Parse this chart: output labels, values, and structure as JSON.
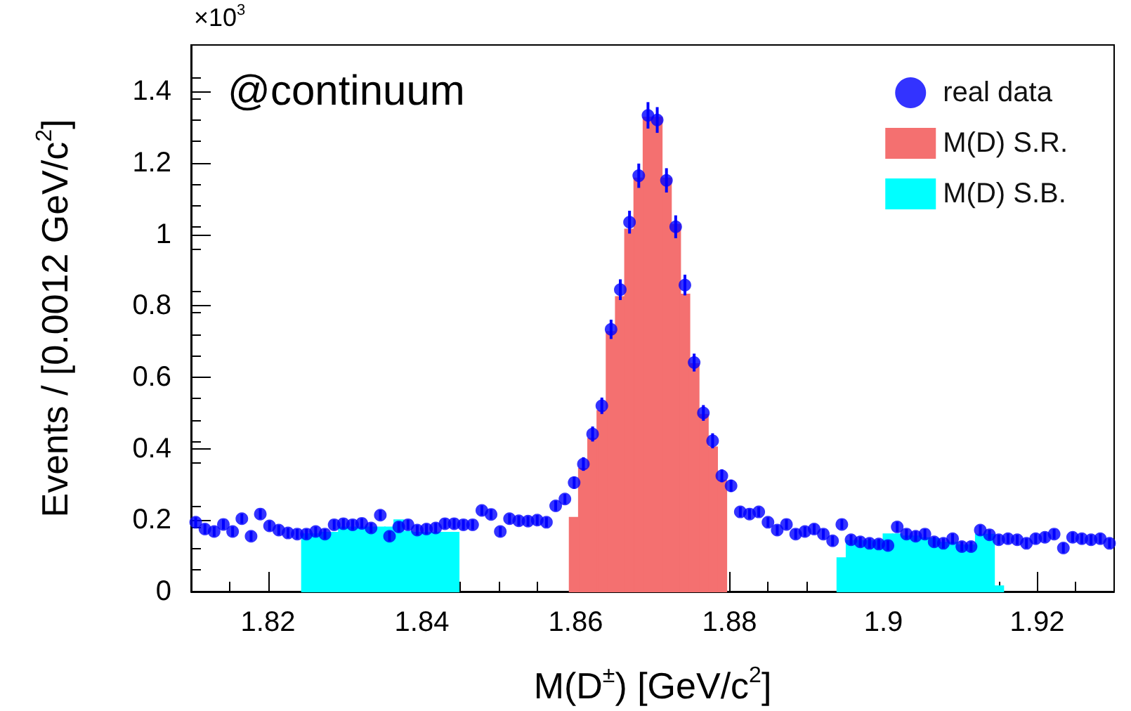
{
  "chart_data": {
    "type": "histogram",
    "xlabel": "M(D$^{±}$) [GeV/c$^{2}$]",
    "ylabel": "Events / [0.0012 GeV/c$^{2}$]",
    "annotations": [
      "@continuum",
      "×10$^{3}$"
    ],
    "xlim": [
      1.81,
      1.93
    ],
    "xticks": [
      1.82,
      1.84,
      1.86,
      1.88,
      1.9,
      1.92
    ],
    "ylim": [
      0,
      1.53
    ],
    "yticks": [
      0,
      0.2,
      0.4,
      0.6,
      0.8,
      1,
      1.2,
      1.4
    ],
    "grid": false,
    "legend": "top right",
    "series": [
      {
        "name": "real data",
        "type": "scatter",
        "color": "#0000ff",
        "marker": "circle",
        "x": [
          1.8106,
          1.8118,
          1.813,
          1.8142,
          1.8154,
          1.8166,
          1.8178,
          1.819,
          1.8202,
          1.8214,
          1.8226,
          1.8238,
          1.825,
          1.8262,
          1.8274,
          1.8286,
          1.8298,
          1.831,
          1.8322,
          1.8334,
          1.8346,
          1.8358,
          1.837,
          1.8382,
          1.8394,
          1.8406,
          1.8418,
          1.843,
          1.8442,
          1.8454,
          1.8466,
          1.8478,
          1.849,
          1.8502,
          1.8514,
          1.8526,
          1.8538,
          1.855,
          1.8562,
          1.8574,
          1.8586,
          1.8598,
          1.861,
          1.8622,
          1.8634,
          1.8646,
          1.8658,
          1.867,
          1.8682,
          1.8694,
          1.8706,
          1.8718,
          1.873,
          1.8742,
          1.8754,
          1.8766,
          1.8778,
          1.879,
          1.8802,
          1.8814,
          1.8826,
          1.8838,
          1.885,
          1.8862,
          1.8874,
          1.8886,
          1.8898,
          1.891,
          1.8922,
          1.8934,
          1.8946,
          1.8958,
          1.897,
          1.8982,
          1.8994,
          1.9006,
          1.9018,
          1.903,
          1.9042,
          1.9054,
          1.9066,
          1.9078,
          1.909,
          1.9102,
          1.9114,
          1.9126,
          1.9138,
          1.915,
          1.9162,
          1.9174,
          1.9186,
          1.9198,
          1.921,
          1.9222,
          1.9234,
          1.9246,
          1.9258,
          1.927,
          1.9282,
          1.9294
        ],
        "values": [
          0.194,
          0.175,
          0.168,
          0.188,
          0.168,
          0.204,
          0.155,
          0.217,
          0.184,
          0.172,
          0.164,
          0.161,
          0.161,
          0.168,
          0.161,
          0.187,
          0.19,
          0.187,
          0.191,
          0.178,
          0.214,
          0.155,
          0.181,
          0.187,
          0.172,
          0.175,
          0.178,
          0.19,
          0.19,
          0.187,
          0.187,
          0.227,
          0.216,
          0.168,
          0.204,
          0.198,
          0.197,
          0.2,
          0.194,
          0.24,
          0.259,
          0.305,
          0.357,
          0.441,
          0.52,
          0.734,
          0.845,
          1.034,
          1.164,
          1.333,
          1.32,
          1.151,
          1.021,
          0.858,
          0.641,
          0.5,
          0.422,
          0.324,
          0.296,
          0.223,
          0.217,
          0.223,
          0.194,
          0.172,
          0.188,
          0.161,
          0.168,
          0.175,
          0.161,
          0.142,
          0.188,
          0.145,
          0.139,
          0.135,
          0.133,
          0.129,
          0.181,
          0.161,
          0.155,
          0.161,
          0.139,
          0.135,
          0.148,
          0.126,
          0.126,
          0.172,
          0.159,
          0.145,
          0.148,
          0.145,
          0.135,
          0.148,
          0.152,
          0.161,
          0.122,
          0.152,
          0.148,
          0.145,
          0.148,
          0.135
        ],
        "errors": [
          0.014,
          0.014,
          0.014,
          0.014,
          0.014,
          0.014,
          0.014,
          0.014,
          0.014,
          0.014,
          0.014,
          0.014,
          0.014,
          0.014,
          0.014,
          0.014,
          0.014,
          0.014,
          0.014,
          0.014,
          0.014,
          0.014,
          0.014,
          0.014,
          0.014,
          0.014,
          0.014,
          0.014,
          0.014,
          0.014,
          0.014,
          0.014,
          0.014,
          0.014,
          0.014,
          0.014,
          0.014,
          0.014,
          0.014,
          0.014,
          0.014,
          0.017,
          0.019,
          0.021,
          0.023,
          0.027,
          0.029,
          0.032,
          0.034,
          0.037,
          0.036,
          0.034,
          0.032,
          0.029,
          0.025,
          0.022,
          0.021,
          0.018,
          0.017,
          0.014,
          0.014,
          0.014,
          0.014,
          0.014,
          0.014,
          0.014,
          0.014,
          0.014,
          0.014,
          0.014,
          0.014,
          0.014,
          0.014,
          0.014,
          0.014,
          0.014,
          0.014,
          0.014,
          0.014,
          0.014,
          0.014,
          0.014,
          0.014,
          0.014,
          0.014,
          0.014,
          0.014,
          0.014,
          0.014,
          0.014,
          0.014,
          0.014,
          0.014,
          0.014,
          0.014,
          0.014,
          0.014,
          0.014,
          0.014,
          0.014
        ]
      },
      {
        "name": "M(D) S.R.",
        "color": "#f47070",
        "bins": [
          1.8592,
          1.8604,
          1.8616,
          1.8628,
          1.864,
          1.8652,
          1.8664,
          1.8676,
          1.8688,
          1.87,
          1.8712,
          1.8724,
          1.8736,
          1.8748,
          1.876,
          1.8772,
          1.8784,
          1.8796
        ],
        "values": [
          0.207,
          0.344,
          0.428,
          0.506,
          0.727,
          0.825,
          1.014,
          1.157,
          1.327,
          1.327,
          1.157,
          1.027,
          0.832,
          0.637,
          0.495,
          0.404,
          0.311
        ]
      },
      {
        "name": "M(D) S.B.",
        "color": "#00ffff",
        "bins": [
          1.8244,
          1.8256,
          1.8268,
          1.828,
          1.8292,
          1.8304,
          1.8316,
          1.8328,
          1.834,
          1.8352,
          1.8364,
          1.8376,
          1.8388,
          1.84,
          1.8412,
          1.8424,
          1.8436,
          1.8448
        ],
        "values": [
          0.161,
          0.161,
          0.165,
          0.165,
          0.18,
          0.18,
          0.18,
          0.18,
          0.18,
          0.18,
          0.2,
          0.168,
          0.165,
          0.165,
          0.165,
          0.165,
          0.165
        ]
      },
      {
        "color": "#00ffff",
        "bins": [
          1.894,
          1.8952,
          1.8964,
          1.8976,
          1.8988,
          1.9,
          1.9012,
          1.9024,
          1.9036,
          1.9048,
          1.906,
          1.9072,
          1.9084,
          1.9096,
          1.9108,
          1.912,
          1.9132,
          1.9144,
          1.9156
        ],
        "values": [
          0.094,
          0.142,
          0.142,
          0.142,
          0.142,
          0.161,
          0.161,
          0.155,
          0.155,
          0.15,
          0.148,
          0.137,
          0.137,
          0.13,
          0.13,
          0.16,
          0.16,
          0.015
        ]
      }
    ]
  }
}
